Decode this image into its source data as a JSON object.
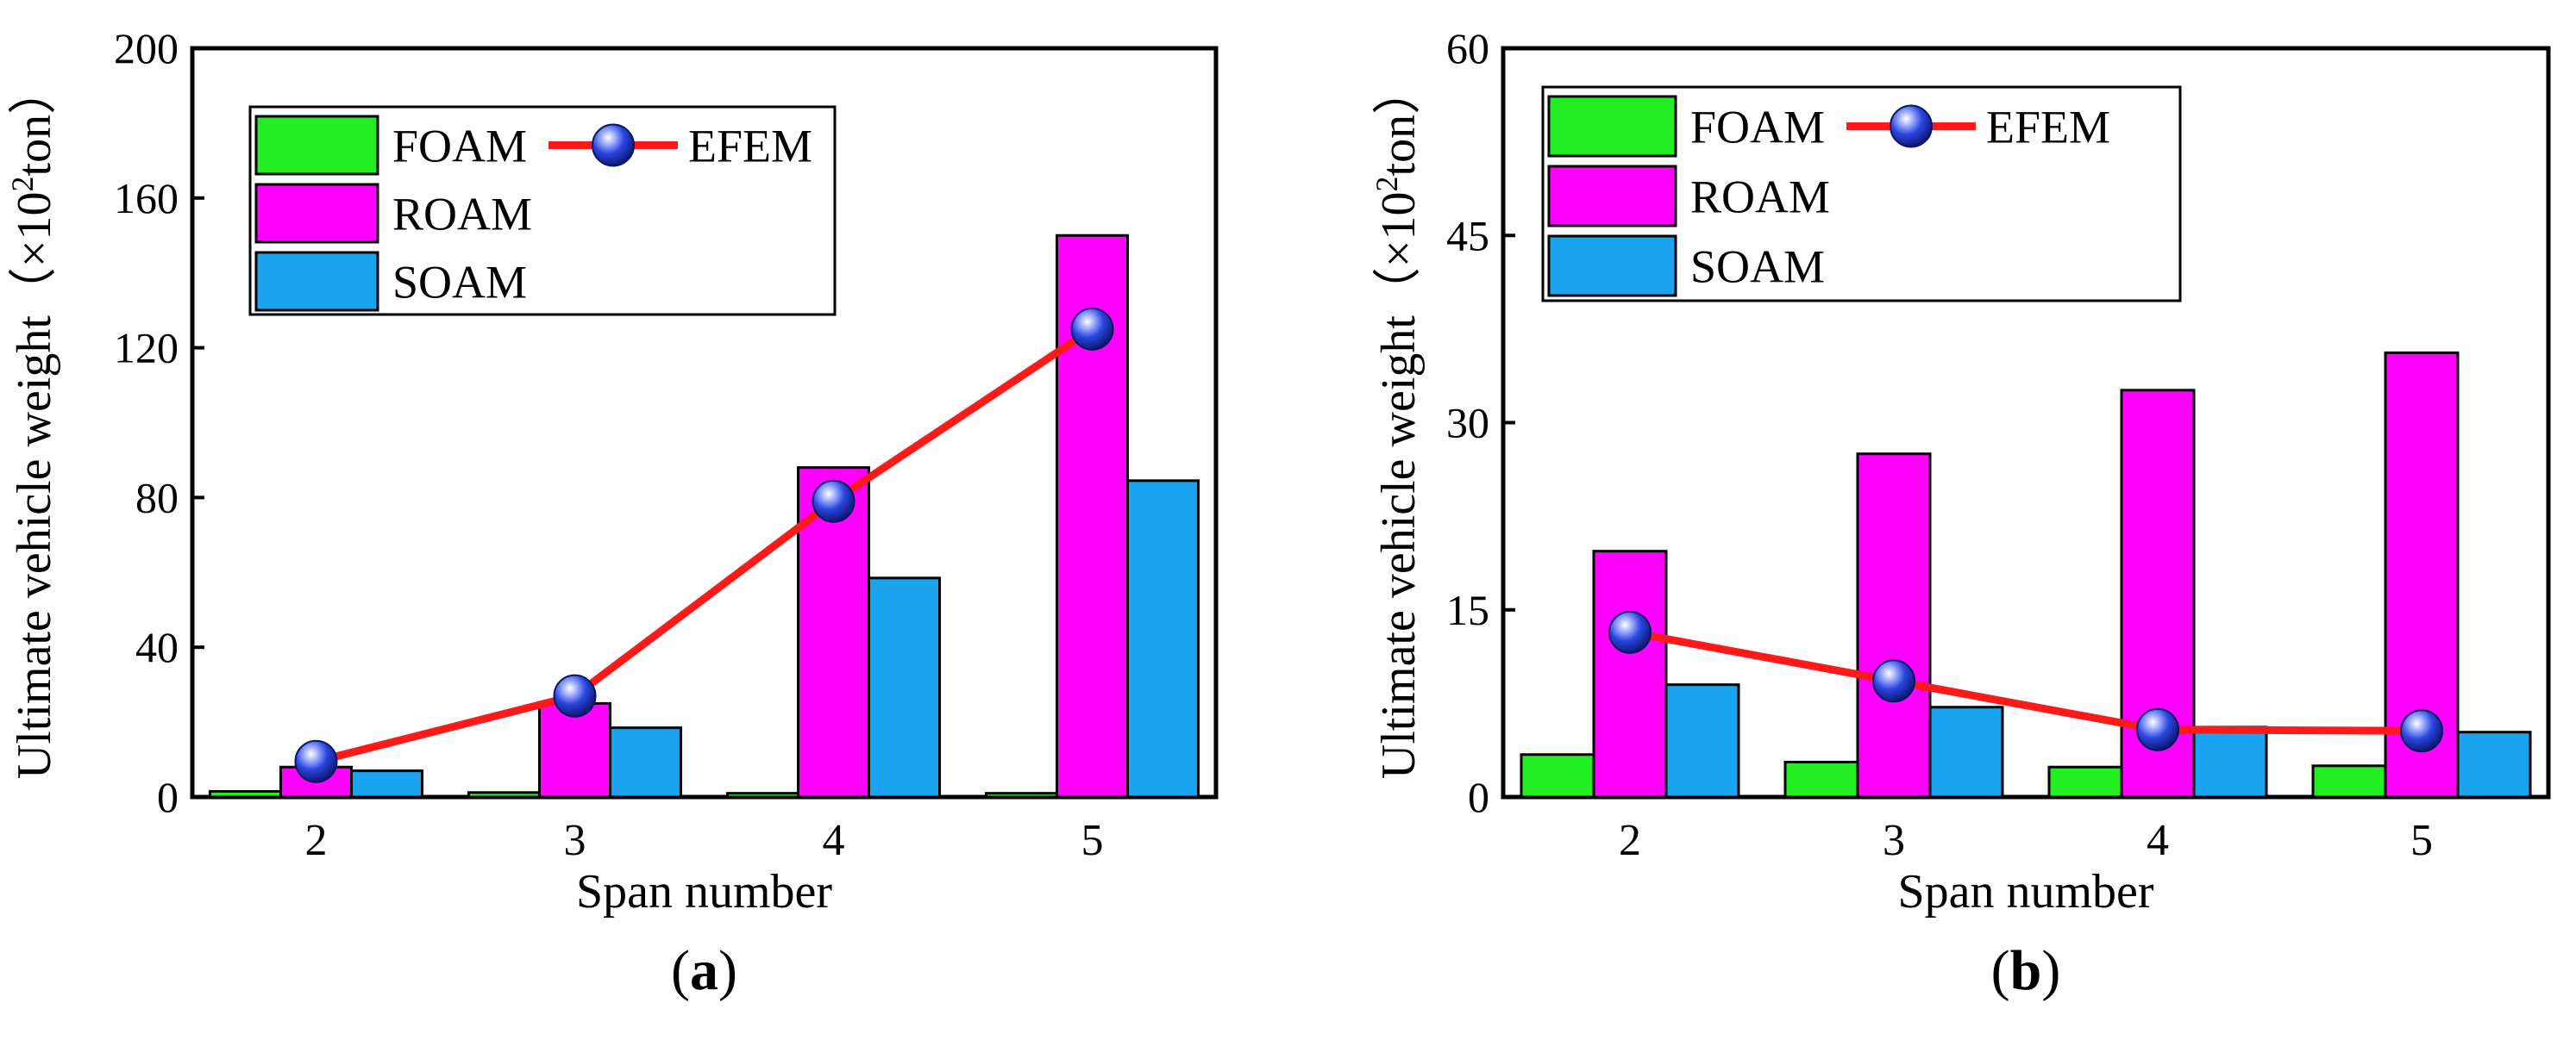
{
  "chart_data": [
    {
      "type": "bar",
      "panel": "(a)",
      "panel_letter": "a",
      "title": "",
      "xlabel": "Span number",
      "ylabel": "Ultimate vehicle weight（×10²ton）",
      "ylabel_parts": {
        "main": "Ultimate vehicle weight",
        "unit_pre": "（×10",
        "unit_sup": "2",
        "unit_post": "ton）"
      },
      "categories": [
        "2",
        "3",
        "4",
        "5"
      ],
      "ylim": [
        0,
        200
      ],
      "yticks": [
        0,
        40,
        80,
        120,
        160,
        200
      ],
      "legend_position": "top-left",
      "series": [
        {
          "name": "FOAM",
          "kind": "bar",
          "color": "#22ee22",
          "values": [
            1.5,
            1.2,
            1.0,
            1.0
          ]
        },
        {
          "name": "ROAM",
          "kind": "bar",
          "color": "#ff00ff",
          "values": [
            8,
            25,
            88,
            150
          ]
        },
        {
          "name": "SOAM",
          "kind": "bar",
          "color": "#1aa3ee",
          "values": [
            7,
            18.5,
            58.5,
            84.5
          ]
        },
        {
          "name": "EFEM",
          "kind": "line",
          "color": "#ff1a1a",
          "marker_color": "#1f3fd8",
          "values": [
            9.5,
            27,
            79,
            125
          ]
        }
      ]
    },
    {
      "type": "bar",
      "panel": "(b)",
      "panel_letter": "b",
      "title": "",
      "xlabel": "Span number",
      "ylabel": "Ultimate vehicle weight（×10²ton）",
      "ylabel_parts": {
        "main": "Ultimate vehicle weight",
        "unit_pre": "（×10",
        "unit_sup": "2",
        "unit_post": "ton）"
      },
      "categories": [
        "2",
        "3",
        "4",
        "5"
      ],
      "ylim": [
        0,
        60
      ],
      "yticks": [
        0,
        15,
        30,
        45,
        60
      ],
      "legend_position": "top-left",
      "series": [
        {
          "name": "FOAM",
          "kind": "bar",
          "color": "#22ee22",
          "values": [
            3.4,
            2.8,
            2.4,
            2.5
          ]
        },
        {
          "name": "ROAM",
          "kind": "bar",
          "color": "#ff00ff",
          "values": [
            19.7,
            27.5,
            32.6,
            35.6
          ]
        },
        {
          "name": "SOAM",
          "kind": "bar",
          "color": "#1aa3ee",
          "values": [
            9.0,
            7.2,
            5.6,
            5.2
          ]
        },
        {
          "name": "EFEM",
          "kind": "line",
          "color": "#ff1a1a",
          "marker_color": "#1f3fd8",
          "values": [
            13.2,
            9.3,
            5.4,
            5.3
          ]
        }
      ]
    }
  ]
}
